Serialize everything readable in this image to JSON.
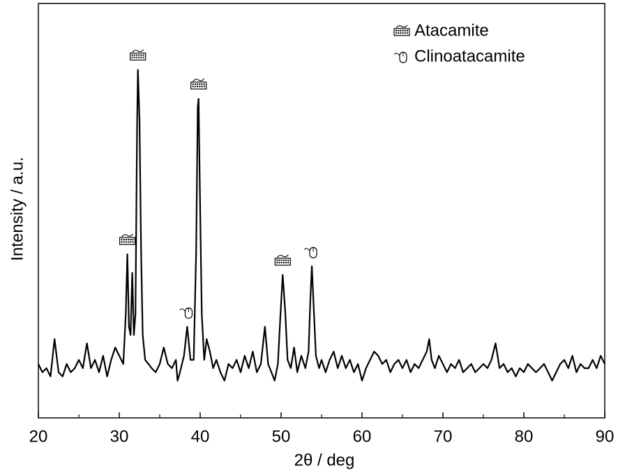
{
  "chart_data": {
    "type": "line",
    "x_label": "2θ / deg",
    "y_label": "Intensity / a.u.",
    "xlim": [
      20,
      90
    ],
    "ylim": [
      0,
      100
    ],
    "xticks": [
      20,
      30,
      40,
      50,
      60,
      70,
      80,
      90
    ],
    "xminorticks": [
      25,
      35,
      45,
      55,
      65,
      75,
      85
    ],
    "color": "#000000",
    "x": [
      20.0,
      20.5,
      21.0,
      21.5,
      22.0,
      22.5,
      23.0,
      23.5,
      24.0,
      24.5,
      25.0,
      25.5,
      26.0,
      26.5,
      27.0,
      27.5,
      28.0,
      28.5,
      29.0,
      29.5,
      30.0,
      30.5,
      30.8,
      31.0,
      31.2,
      31.4,
      31.6,
      31.8,
      32.0,
      32.2,
      32.3,
      32.5,
      32.7,
      32.9,
      33.2,
      33.6,
      34.0,
      34.5,
      35.0,
      35.5,
      36.0,
      36.5,
      37.0,
      37.2,
      37.5,
      38.0,
      38.4,
      38.8,
      39.2,
      39.5,
      39.7,
      39.8,
      40.0,
      40.2,
      40.5,
      40.8,
      41.2,
      41.6,
      42.0,
      42.5,
      43.0,
      43.5,
      44.0,
      44.5,
      45.0,
      45.5,
      46.0,
      46.5,
      47.0,
      47.5,
      48.0,
      48.4,
      48.8,
      49.2,
      49.6,
      49.9,
      50.2,
      50.5,
      50.8,
      51.2,
      51.6,
      52.0,
      52.5,
      53.0,
      53.4,
      53.6,
      53.8,
      54.0,
      54.3,
      54.7,
      55.0,
      55.5,
      56.0,
      56.5,
      57.0,
      57.5,
      58.0,
      58.5,
      59.0,
      59.5,
      60.0,
      60.5,
      61.0,
      61.5,
      62.0,
      62.5,
      63.0,
      63.5,
      64.0,
      64.5,
      65.0,
      65.5,
      66.0,
      66.5,
      67.0,
      67.5,
      68.0,
      68.3,
      68.6,
      69.0,
      69.5,
      70.0,
      70.5,
      71.0,
      71.5,
      72.0,
      72.5,
      73.0,
      73.5,
      74.0,
      74.5,
      75.0,
      75.5,
      76.0,
      76.5,
      77.0,
      77.5,
      78.0,
      78.5,
      79.0,
      79.5,
      80.0,
      80.5,
      81.0,
      81.5,
      82.0,
      82.5,
      83.0,
      83.5,
      84.0,
      84.5,
      85.0,
      85.5,
      86.0,
      86.5,
      87.0,
      87.5,
      88.0,
      88.5,
      89.0,
      89.5,
      90.0
    ],
    "values": [
      13,
      11,
      12,
      10,
      19,
      11,
      10,
      13,
      11,
      12,
      14,
      12,
      18,
      12,
      14,
      11,
      15,
      10,
      14,
      17,
      15,
      13,
      25,
      39.5,
      22,
      20,
      35,
      20,
      25,
      70,
      84,
      72,
      40,
      20,
      14,
      13,
      12,
      11,
      13,
      17,
      13,
      12,
      14,
      9,
      11,
      15,
      22,
      14,
      14,
      40,
      75,
      77,
      50,
      25,
      14,
      19,
      16,
      12,
      14,
      11,
      9,
      13,
      12,
      14,
      11,
      15,
      12,
      16,
      11,
      13,
      22,
      13,
      11,
      9,
      13,
      24,
      34.5,
      26,
      14,
      12,
      17,
      11,
      15,
      12,
      16,
      28,
      36.6,
      28,
      15,
      12,
      14,
      11,
      14,
      16,
      12,
      15,
      12,
      14,
      11,
      13,
      9,
      12,
      14,
      16,
      15,
      13,
      14,
      11,
      13,
      14,
      12,
      14,
      11,
      13,
      12,
      14,
      16,
      19,
      14,
      12,
      15,
      13,
      11,
      13,
      12,
      14,
      11,
      12,
      13,
      11,
      12,
      13,
      12,
      14,
      18,
      12,
      13,
      11,
      12,
      10,
      12,
      11,
      13,
      12,
      11,
      12,
      13,
      11,
      9,
      11,
      13,
      14,
      12,
      15,
      11,
      13,
      12,
      12,
      14,
      12,
      15,
      13
    ],
    "markers": [
      {
        "name": "Atacamite",
        "x": [
          31.0,
          32.3,
          39.8,
          50.2
        ],
        "values": [
          39.5,
          84,
          77,
          34.5
        ]
      },
      {
        "name": "Clinoatacamite",
        "x": [
          38.4,
          53.8
        ],
        "values": [
          22,
          36.6
        ]
      }
    ]
  }
}
